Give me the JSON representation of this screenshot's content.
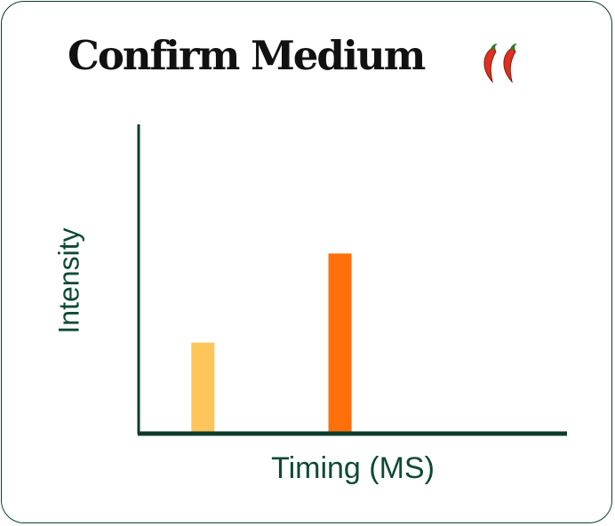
{
  "chart_data": {
    "type": "bar",
    "title": "Confirm Medium",
    "title_icon": "chili-pepper-icon",
    "title_icon_count": 2,
    "xlabel": "Timing (MS)",
    "ylabel": "Intensity",
    "xlim": [
      0,
      1
    ],
    "ylim": [
      0,
      1
    ],
    "grid": false,
    "legend": "none",
    "bars": [
      {
        "x": 0.15,
        "value": 0.29,
        "color": "#fec55a"
      },
      {
        "x": 0.47,
        "value": 0.58,
        "color": "#ff6f0a"
      }
    ],
    "axis_color": "#0d3d2b"
  }
}
